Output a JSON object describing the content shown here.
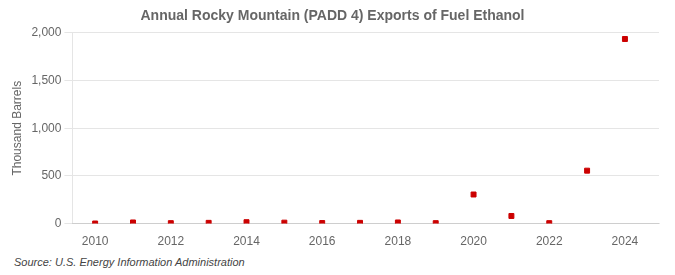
{
  "chart_data": {
    "type": "scatter",
    "title": "Annual Rocky Mountain (PADD 4) Exports of Fuel Ethanol",
    "ylabel": "Thousand Barrels",
    "source": "Source: U.S. Energy Information Administration",
    "x": [
      2010,
      2011,
      2012,
      2013,
      2014,
      2015,
      2016,
      2017,
      2018,
      2019,
      2020,
      2021,
      2022,
      2023,
      2024
    ],
    "values": [
      1,
      12,
      5,
      8,
      15,
      10,
      6,
      8,
      12,
      5,
      305,
      80,
      5,
      555,
      1935
    ],
    "color": "#cc0000",
    "marker": "square",
    "xlim": [
      2009.4,
      2024.9
    ],
    "xticks": [
      2010,
      2012,
      2014,
      2016,
      2018,
      2020,
      2022,
      2024
    ],
    "ylim": [
      0,
      2000
    ],
    "yticks": [
      0,
      500,
      {
        "value": 1000,
        "label": "1,000"
      },
      {
        "value": 1500,
        "label": "1,500"
      },
      {
        "value": 2000,
        "label": "2,000"
      }
    ],
    "grid": "y"
  }
}
